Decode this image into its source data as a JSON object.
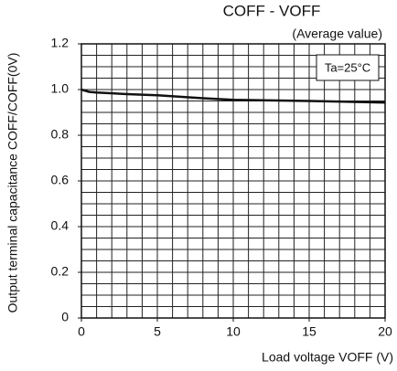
{
  "chart_data": {
    "type": "line",
    "title": "COFF - VOFF",
    "annotation": "(Average value)",
    "condition": "Ta=25°C",
    "x_label": "Load voltage VOFF (V)",
    "y_label": "Output terminal capacitance COFF/COFF(0V)",
    "x": [
      0,
      0.5,
      1,
      3,
      5,
      8,
      10,
      15,
      20
    ],
    "series": [
      {
        "name": "COFF/COFF(0V)",
        "color": "#111111",
        "values": [
          1.0,
          0.99,
          0.987,
          0.98,
          0.975,
          0.962,
          0.955,
          0.95,
          0.943
        ]
      }
    ],
    "xlim": [
      0,
      20
    ],
    "ylim": [
      0,
      1.2
    ],
    "xticks": [
      0,
      5,
      10,
      15,
      20
    ],
    "yticks": [
      0,
      0.2,
      0.4,
      0.6,
      0.8,
      {
        "value": 1,
        "label": "1.0"
      },
      1.2
    ],
    "grid": true,
    "grid_x_step": 1,
    "grid_y_step": 0.05
  }
}
